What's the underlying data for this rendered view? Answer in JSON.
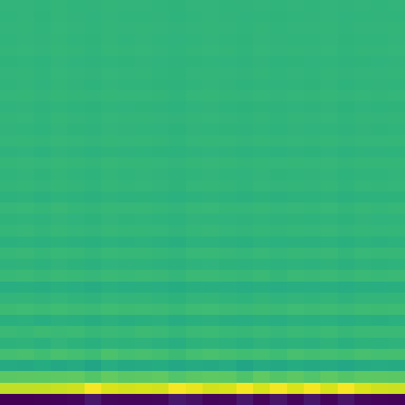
{
  "chart_data": {
    "type": "heatmap",
    "color": "Viridis",
    "tick_labels": false,
    "zlim": [
      -600,
      300
    ],
    "cells": [
      [
        -600,
        -600,
        -598,
        -595,
        -590,
        -545,
        -585,
        -590,
        -588,
        -585,
        -540,
        -560,
        -590,
        -585,
        -545,
        -590,
        -550,
        -588,
        -548,
        -590,
        -550,
        -585,
        -592,
        -595
      ],
      [
        215,
        215,
        220,
        225,
        235,
        290,
        250,
        240,
        245,
        240,
        292,
        270,
        240,
        245,
        288,
        245,
        286,
        250,
        288,
        245,
        290,
        250,
        235,
        230
      ],
      [
        70,
        75,
        72,
        78,
        80,
        60,
        85,
        70,
        75,
        80,
        55,
        70,
        78,
        72,
        50,
        80,
        60,
        75,
        55,
        78,
        60,
        72,
        75,
        70
      ],
      [
        -50,
        -55,
        -45,
        -60,
        -50,
        -70,
        -40,
        -55,
        -50,
        -45,
        -65,
        -50,
        -55,
        -48,
        -70,
        -50,
        -60,
        -45,
        -55,
        -50,
        -62,
        -50,
        -48,
        -52
      ],
      [
        30,
        35,
        25,
        40,
        30,
        20,
        45,
        30,
        35,
        28,
        15,
        30,
        38,
        32,
        25,
        30,
        20,
        35,
        28,
        30,
        25,
        35,
        30,
        32
      ],
      [
        -20,
        -15,
        -25,
        -10,
        -20,
        -30,
        -15,
        -20,
        -18,
        -25,
        -35,
        -20,
        -15,
        -22,
        -30,
        -18,
        -28,
        -20,
        -25,
        -15,
        -30,
        -20,
        -22,
        -18
      ],
      [
        10,
        5,
        15,
        8,
        12,
        0,
        10,
        5,
        15,
        10,
        -5,
        8,
        12,
        5,
        0,
        10,
        -2,
        8,
        5,
        12,
        0,
        10,
        8,
        10
      ],
      [
        -30,
        -28,
        -35,
        -25,
        -30,
        -38,
        -27,
        -32,
        -30,
        -26,
        -40,
        -30,
        -28,
        -33,
        -36,
        -30,
        -35,
        -28,
        -31,
        -29,
        -37,
        -30,
        -32,
        -29
      ],
      [
        15,
        18,
        12,
        20,
        14,
        8,
        22,
        15,
        17,
        13,
        5,
        16,
        19,
        14,
        10,
        15,
        9,
        18,
        13,
        16,
        10,
        17,
        15,
        16
      ],
      [
        -10,
        -8,
        -14,
        -6,
        -12,
        -18,
        -7,
        -10,
        -9,
        -13,
        -20,
        -10,
        -8,
        -12,
        -17,
        -9,
        -16,
        -11,
        -13,
        -8,
        -18,
        -10,
        -11,
        -9
      ],
      [
        -35,
        -32,
        -38,
        -30,
        -36,
        -42,
        -31,
        -35,
        -33,
        -37,
        -45,
        -34,
        -32,
        -36,
        -40,
        -33,
        -39,
        -35,
        -37,
        -32,
        -41,
        -34,
        -36,
        -33
      ],
      [
        5,
        8,
        2,
        10,
        4,
        -2,
        9,
        5,
        7,
        3,
        -6,
        6,
        9,
        4,
        0,
        6,
        -3,
        7,
        3,
        8,
        -1,
        6,
        5,
        7
      ],
      [
        -18,
        -15,
        -22,
        -14,
        -20,
        -25,
        -16,
        -19,
        -17,
        -21,
        -28,
        -18,
        -16,
        -20,
        -24,
        -17,
        -23,
        -19,
        -21,
        -15,
        -26,
        -18,
        -20,
        -17
      ],
      [
        0,
        3,
        -4,
        5,
        -1,
        -8,
        4,
        0,
        2,
        -3,
        -10,
        1,
        4,
        -2,
        -6,
        1,
        -7,
        2,
        -2,
        3,
        -8,
        1,
        0,
        2
      ],
      [
        -25,
        -22,
        -28,
        -20,
        -26,
        -31,
        -21,
        -25,
        -23,
        -27,
        -33,
        -24,
        -22,
        -26,
        -30,
        -23,
        -29,
        -25,
        -27,
        -22,
        -31,
        -24,
        -26,
        -23
      ],
      [
        -5,
        -2,
        -8,
        0,
        -6,
        -11,
        -1,
        -5,
        -3,
        -7,
        -14,
        -4,
        -2,
        -6,
        -10,
        -3,
        -9,
        -5,
        -7,
        -2,
        -11,
        -4,
        -6,
        -3
      ],
      [
        -15,
        -12,
        -18,
        -10,
        -16,
        -20,
        -11,
        -15,
        -13,
        -17,
        -22,
        -14,
        -12,
        -16,
        -19,
        -13,
        -18,
        -15,
        -17,
        -12,
        -20,
        -14,
        -16,
        -13
      ],
      [
        -2,
        1,
        -5,
        3,
        -3,
        -8,
        2,
        -2,
        0,
        -4,
        -10,
        -1,
        1,
        -3,
        -7,
        0,
        -6,
        -2,
        -4,
        1,
        -8,
        -1,
        -3,
        0
      ],
      [
        -22,
        -19,
        -25,
        -17,
        -23,
        -27,
        -18,
        -22,
        -20,
        -24,
        -29,
        -21,
        -19,
        -23,
        -26,
        -20,
        -25,
        -22,
        -24,
        -19,
        -27,
        -21,
        -23,
        -20
      ],
      [
        -8,
        -5,
        -11,
        -3,
        -9,
        -13,
        -4,
        -8,
        -6,
        -10,
        -15,
        -7,
        -5,
        -9,
        -12,
        -6,
        -11,
        -8,
        -10,
        -5,
        -13,
        -7,
        -9,
        -6
      ],
      [
        -12,
        -10,
        -15,
        -8,
        -13,
        -17,
        -9,
        -12,
        -11,
        -14,
        -18,
        -12,
        -10,
        -13,
        -16,
        -11,
        -15,
        -12,
        -14,
        -10,
        -17,
        -12,
        -13,
        -11
      ],
      [
        -4,
        -2,
        -7,
        0,
        -5,
        -9,
        -1,
        -4,
        -3,
        -6,
        -11,
        -4,
        -2,
        -5,
        -8,
        -3,
        -7,
        -4,
        -6,
        -2,
        -9,
        -4,
        -5,
        -3
      ],
      [
        -18,
        -16,
        -21,
        -14,
        -19,
        -22,
        -15,
        -18,
        -17,
        -20,
        -24,
        -18,
        -16,
        -19,
        -22,
        -17,
        -21,
        -18,
        -20,
        -16,
        -23,
        -18,
        -19,
        -17
      ],
      [
        -6,
        -4,
        -9,
        -2,
        -7,
        -10,
        -3,
        -6,
        -5,
        -8,
        -12,
        -6,
        -4,
        -7,
        -10,
        -5,
        -9,
        -6,
        -8,
        -4,
        -11,
        -6,
        -7,
        -5
      ],
      [
        -14,
        -12,
        -17,
        -10,
        -15,
        -18,
        -11,
        -14,
        -13,
        -16,
        -20,
        -14,
        -12,
        -15,
        -18,
        -13,
        -17,
        -14,
        -16,
        -12,
        -19,
        -14,
        -15,
        -13
      ],
      [
        -9,
        -7,
        -12,
        -5,
        -10,
        -13,
        -6,
        -9,
        -8,
        -11,
        -14,
        -9,
        -7,
        -10,
        -13,
        -8,
        -12,
        -9,
        -11,
        -7,
        -13,
        -9,
        -10,
        -8
      ],
      [
        -16,
        -14,
        -19,
        -12,
        -17,
        -20,
        -13,
        -16,
        -15,
        -18,
        -21,
        -16,
        -14,
        -17,
        -20,
        -15,
        -19,
        -16,
        -18,
        -14,
        -20,
        -16,
        -17,
        -15
      ],
      [
        -7,
        -5,
        -10,
        -3,
        -8,
        -11,
        -4,
        -7,
        -6,
        -9,
        -12,
        -7,
        -5,
        -8,
        -11,
        -6,
        -10,
        -7,
        -9,
        -5,
        -11,
        -7,
        -8,
        -6
      ],
      [
        -13,
        -11,
        -16,
        -9,
        -14,
        -17,
        -10,
        -13,
        -12,
        -15,
        -18,
        -13,
        -11,
        -14,
        -17,
        -12,
        -16,
        -13,
        -15,
        -11,
        -17,
        -13,
        -14,
        -12
      ],
      [
        -10,
        -8,
        -13,
        -6,
        -11,
        -14,
        -7,
        -10,
        -9,
        -12,
        -15,
        -10,
        -8,
        -11,
        -14,
        -9,
        -13,
        -10,
        -12,
        -8,
        -14,
        -10,
        -11,
        -9
      ],
      [
        -15,
        -13,
        -17,
        -11,
        -16,
        -18,
        -12,
        -15,
        -14,
        -16,
        -19,
        -15,
        -13,
        -16,
        -18,
        -14,
        -17,
        -15,
        -16,
        -13,
        -18,
        -15,
        -16,
        -14
      ],
      [
        -8,
        -6,
        -11,
        -4,
        -9,
        -12,
        -5,
        -8,
        -7,
        -10,
        -13,
        -8,
        -6,
        -9,
        -12,
        -7,
        -11,
        -8,
        -10,
        -6,
        -12,
        -8,
        -9,
        -7
      ],
      [
        -12,
        -10,
        -14,
        -8,
        -13,
        -15,
        -9,
        -12,
        -11,
        -13,
        -16,
        -12,
        -10,
        -13,
        -15,
        -11,
        -14,
        -12,
        -13,
        -10,
        -15,
        -12,
        -13,
        -11
      ],
      [
        -10,
        -9,
        -12,
        -7,
        -11,
        -13,
        -8,
        -10,
        -9,
        -11,
        -14,
        -10,
        -9,
        -11,
        -13,
        -9,
        -12,
        -10,
        -11,
        -9,
        -13,
        -10,
        -11,
        -9
      ],
      [
        -13,
        -11,
        -15,
        -9,
        -14,
        -16,
        -10,
        -13,
        -12,
        -14,
        -17,
        -13,
        -11,
        -14,
        -16,
        -12,
        -15,
        -13,
        -14,
        -11,
        -16,
        -13,
        -14,
        -12
      ],
      [
        -11,
        -10,
        -13,
        -8,
        -12,
        -14,
        -9,
        -11,
        -10,
        -12,
        -15,
        -11,
        -10,
        -12,
        -14,
        -10,
        -13,
        -11,
        -12,
        -10,
        -14,
        -11,
        -12,
        -10
      ]
    ]
  }
}
